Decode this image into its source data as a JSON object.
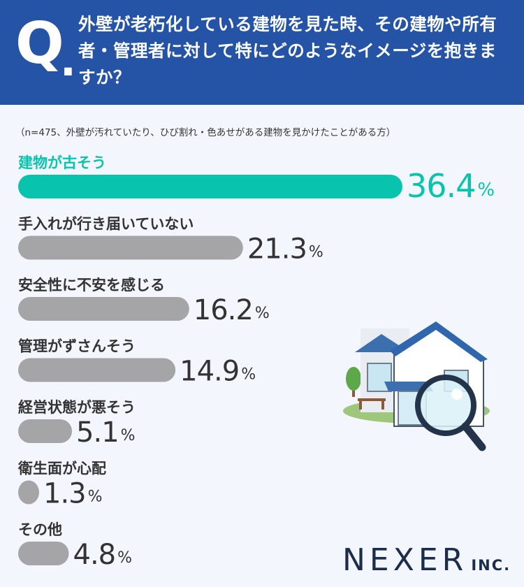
{
  "header": {
    "q_mark": "Q",
    "q_dot": ".",
    "question": "外壁が老朽化している建物を見た時、その建物や所有者・管理者に対して特にどのようなイメージを抱きますか？"
  },
  "note": "（n=475、外壁が汚れていたり、ひび割れ・色あせがある建物を見かけたことがある方）",
  "chart_data": {
    "type": "bar",
    "orientation": "horizontal",
    "unit": "%",
    "categories": [
      "建物が古そう",
      "手入れが行き届いていない",
      "安全性に不安を感じる",
      "管理がずさんそう",
      "経営状態が悪そう",
      "衛生面が心配",
      "その他"
    ],
    "values": [
      36.4,
      21.3,
      16.2,
      14.9,
      5.1,
      1.3,
      4.8
    ],
    "value_labels": [
      "36.4",
      "21.3",
      "16.2",
      "14.9",
      "5.1",
      "1.3",
      "4.8"
    ],
    "highlight_index": 0,
    "colors": {
      "highlight": "#08c3ad",
      "default": "#a5a5a8",
      "highlight_text": "#08c3ad",
      "default_text": "#333333"
    }
  },
  "logo": {
    "main": "NEXER",
    "suffix": "INC."
  },
  "icons": {
    "illustration": "house-with-magnifier-icon"
  }
}
